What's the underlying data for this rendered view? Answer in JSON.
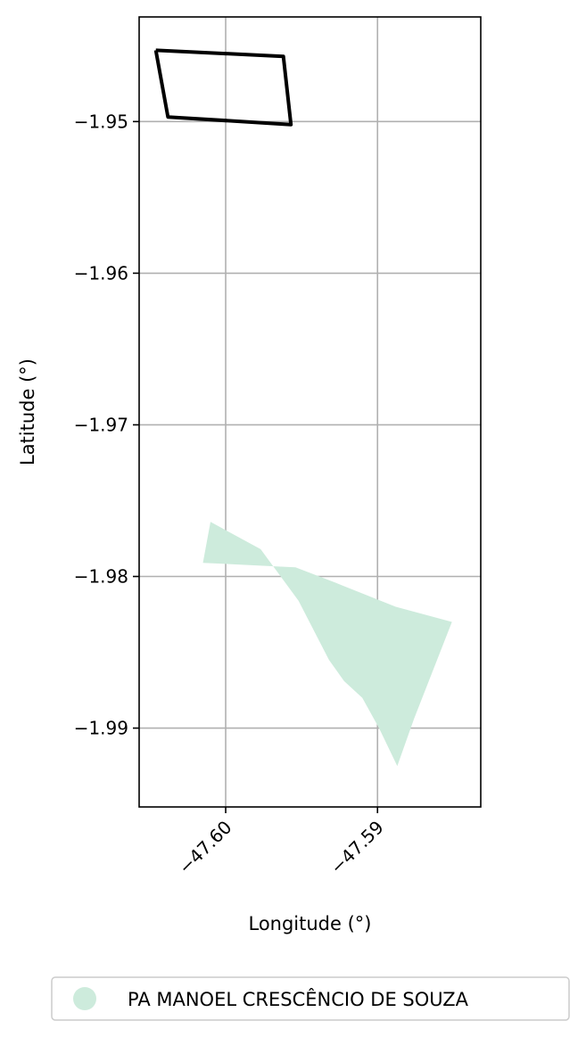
{
  "chart_data": {
    "type": "map",
    "xlabel": "Longitude (°)",
    "ylabel": "Latitude (°)",
    "xlim": [
      -47.6057,
      -47.5832
    ],
    "ylim": [
      -1.9952,
      -1.9431
    ],
    "grid": true,
    "x_ticks": [
      {
        "value": -47.6,
        "label": "−47.60"
      },
      {
        "value": -47.59,
        "label": "−47.59"
      }
    ],
    "y_ticks": [
      {
        "value": -1.95,
        "label": "−1.95"
      },
      {
        "value": -1.96,
        "label": "−1.96"
      },
      {
        "value": -1.97,
        "label": "−1.97"
      },
      {
        "value": -1.98,
        "label": "−1.98"
      },
      {
        "value": -1.99,
        "label": "−1.99"
      }
    ],
    "boundary": {
      "color": "#000000",
      "points": [
        [
          -47.6046,
          -1.9453
        ],
        [
          -47.5962,
          -1.9457
        ],
        [
          -47.5957,
          -1.9502
        ],
        [
          -47.6038,
          -1.9497
        ],
        [
          -47.6046,
          -1.9453
        ]
      ]
    },
    "area": {
      "name": "PA MANOEL CRESCÊNCIO DE SOUZA",
      "color": "#cdebdc",
      "points": [
        [
          -47.6015,
          -1.9791
        ],
        [
          -47.5954,
          -1.9794
        ],
        [
          -47.5928,
          -1.9804
        ],
        [
          -47.5888,
          -1.982
        ],
        [
          -47.5851,
          -1.983
        ],
        [
          -47.5876,
          -1.9894
        ],
        [
          -47.5887,
          -1.9925
        ],
        [
          -47.5899,
          -1.99
        ],
        [
          -47.591,
          -1.988
        ],
        [
          -47.5922,
          -1.9869
        ],
        [
          -47.5932,
          -1.9855
        ],
        [
          -47.5952,
          -1.9816
        ],
        [
          -47.5977,
          -1.9782
        ],
        [
          -47.601,
          -1.9764
        ],
        [
          -47.6015,
          -1.9791
        ]
      ]
    },
    "legend": {
      "placement": "bottom",
      "entries": [
        {
          "label": "PA MANOEL CRESCÊNCIO DE SOUZA",
          "color": "#cdebdc",
          "marker": "circle"
        }
      ]
    }
  }
}
